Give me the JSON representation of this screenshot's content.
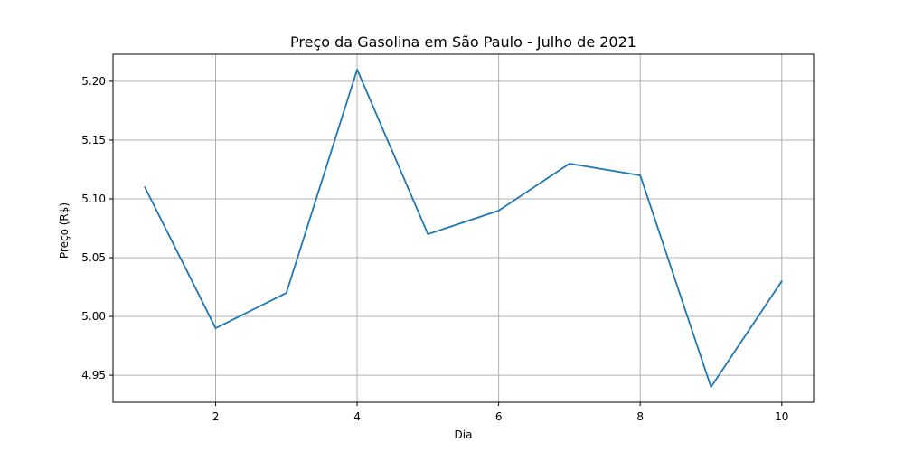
{
  "chart_data": {
    "type": "line",
    "title": "Preço da Gasolina em São Paulo - Julho de 2021",
    "xlabel": "Dia",
    "ylabel": "Preço (R$)",
    "x": [
      1,
      2,
      3,
      4,
      5,
      6,
      7,
      8,
      9,
      10
    ],
    "series": [
      {
        "values": [
          5.11,
          4.99,
          5.02,
          5.21,
          5.07,
          5.09,
          5.13,
          5.12,
          4.94,
          5.03
        ],
        "color": "#1f77b4"
      }
    ],
    "xlim": [
      0.55,
      10.45
    ],
    "ylim": [
      4.927,
      5.223
    ],
    "xticks": [
      2,
      4,
      6,
      8,
      10
    ],
    "xtick_labels": [
      "2",
      "4",
      "6",
      "8",
      "10"
    ],
    "yticks": [
      4.95,
      5.0,
      5.05,
      5.1,
      5.15,
      5.2
    ],
    "ytick_labels": [
      "4.95",
      "5.00",
      "5.05",
      "5.10",
      "5.15",
      "5.20"
    ],
    "grid": true,
    "legend": "none"
  }
}
